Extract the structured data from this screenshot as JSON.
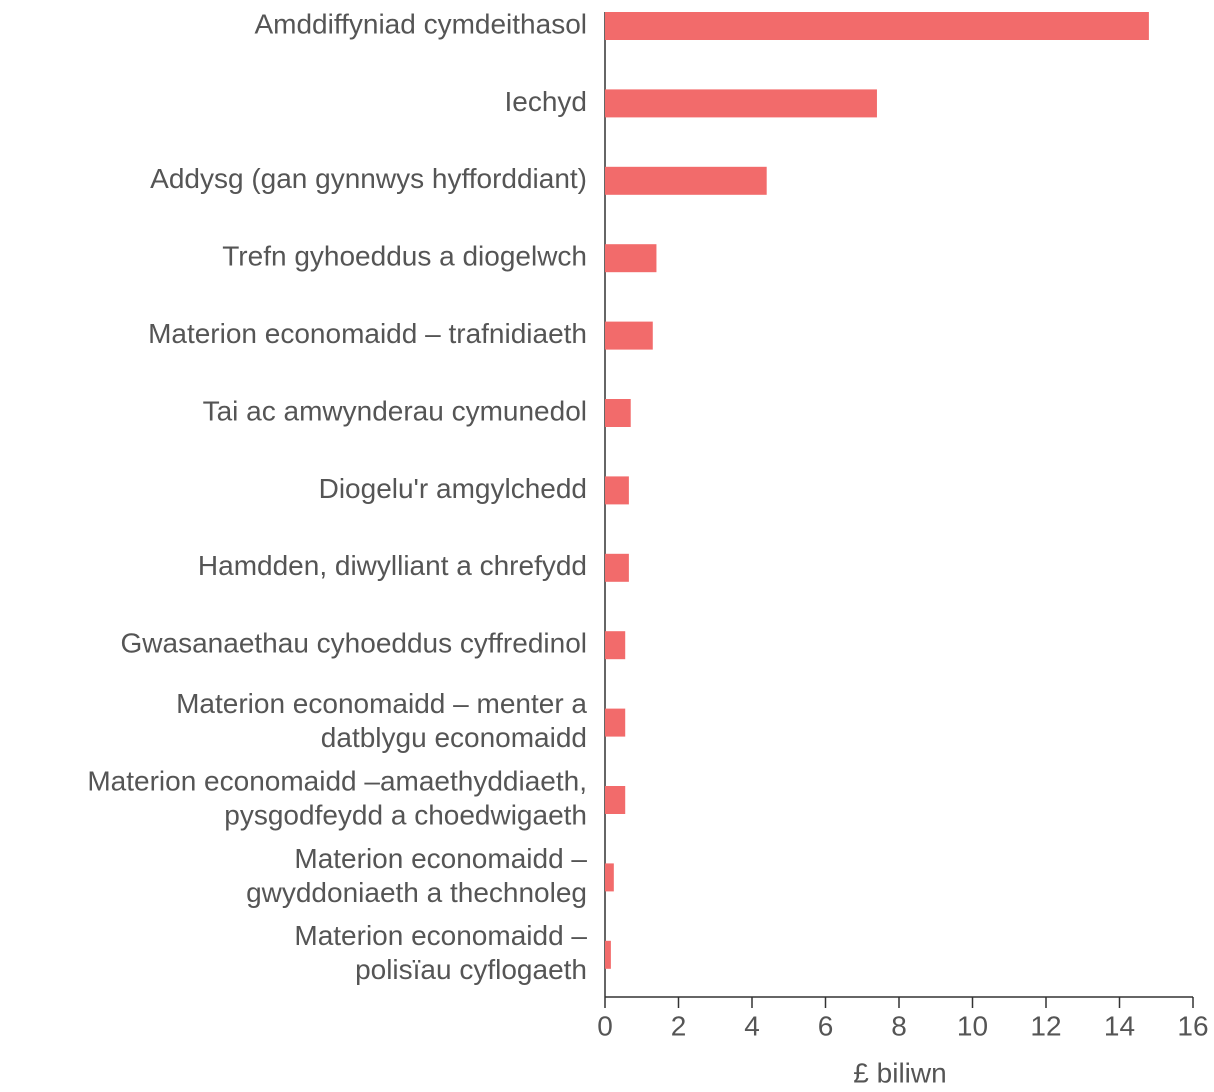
{
  "chart_data": {
    "type": "bar",
    "orientation": "horizontal",
    "categories": [
      "Amddiffyniad cymdeithasol",
      "Iechyd",
      "Addysg (gan gynnwys hyfforddiant)",
      "Trefn gyhoeddus a diogelwch",
      "Materion economaidd – trafnidiaeth",
      "Tai ac amwynderau cymunedol",
      "Diogelu'r amgylchedd",
      "Hamdden, diwylliant a chrefydd",
      "Gwasanaethau cyhoeddus cyffredinol",
      [
        "Materion economaidd – menter a",
        "datblygu economaidd"
      ],
      [
        "Materion economaidd –amaethyddiaeth,",
        "pysgodfeydd a choedwigaeth"
      ],
      [
        "Materion economaidd –",
        "gwyddoniaeth a thechnoleg"
      ],
      [
        "Materion economaidd –",
        "polisïau cyflogaeth"
      ]
    ],
    "values": [
      14.8,
      7.4,
      4.4,
      1.4,
      1.3,
      0.7,
      0.65,
      0.65,
      0.55,
      0.55,
      0.55,
      0.24,
      0.16
    ],
    "color": "#f26b6b",
    "xlabel": "£ biliwn",
    "xlim": [
      0,
      16
    ],
    "xticks": [
      0,
      2,
      4,
      6,
      8,
      10,
      12,
      14,
      16
    ]
  }
}
